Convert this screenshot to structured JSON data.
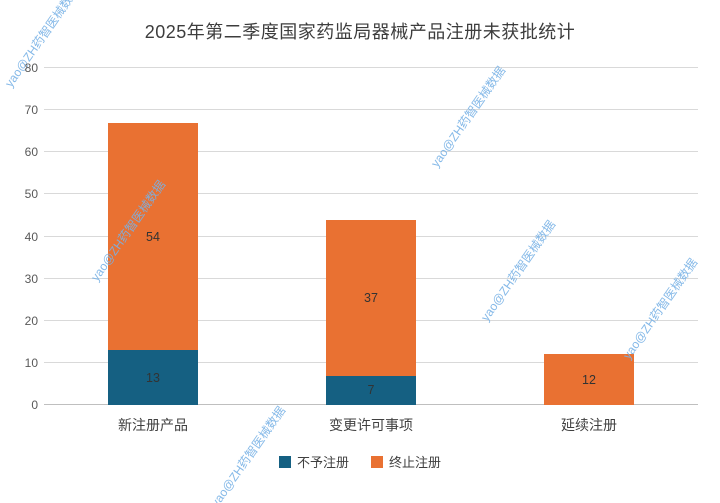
{
  "chart_data": {
    "type": "bar",
    "stacked": true,
    "title": "2025年第二季度国家药监局器械产品注册未获批统计",
    "categories": [
      "新注册产品",
      "变更许可事项",
      "延续注册"
    ],
    "series": [
      {
        "name": "不予注册",
        "color": "#156082",
        "values": [
          13,
          7,
          null
        ]
      },
      {
        "name": "终止注册",
        "color": "#E97132",
        "values": [
          54,
          37,
          12
        ]
      }
    ],
    "totals": [
      67,
      44,
      12
    ],
    "xlabel": "",
    "ylabel": "",
    "ylim": [
      0,
      80
    ],
    "ytick_step": 10,
    "grid": true,
    "legend_position": "bottom"
  },
  "watermark": {
    "text": "yao@ZH药智医械数据"
  },
  "colors": {
    "background": "#ffffff",
    "gridline": "#d9d9d9",
    "axis_line": "#bfbfbf",
    "title_text": "#3d3d3d",
    "tick_text": "#595959",
    "data_label_text": "#333333",
    "watermark": "#78b1e6"
  }
}
